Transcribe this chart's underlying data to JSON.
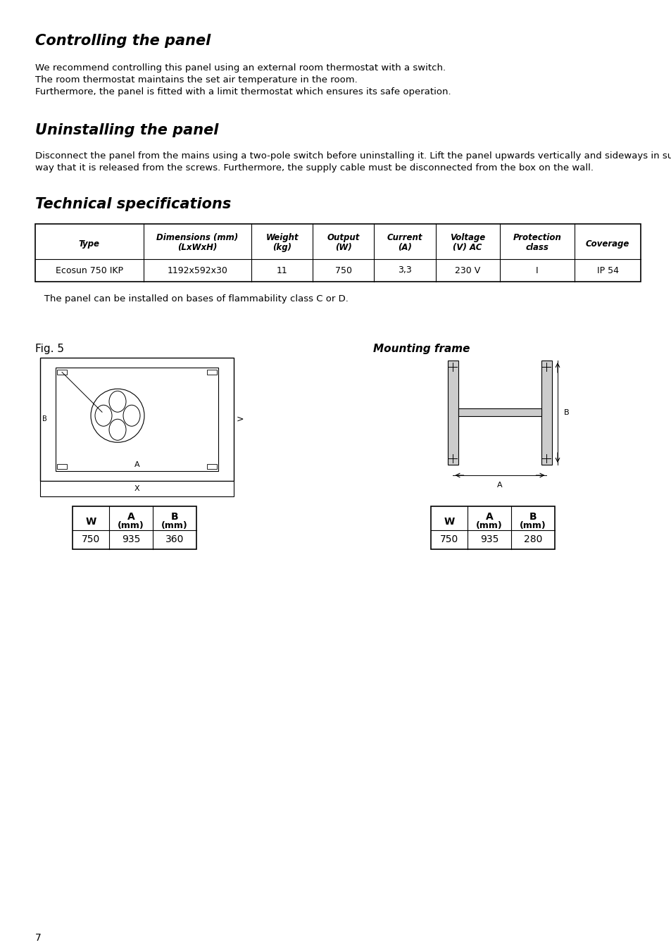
{
  "title1": "Controlling the panel",
  "text1_lines": [
    "We recommend controlling this panel using an external room thermostat with a switch.",
    "The room thermostat maintains the set air temperature in the room.",
    "Furthermore, the panel is fitted with a limit thermostat which ensures its safe operation."
  ],
  "title2": "Uninstalling the panel",
  "text2_lines": [
    "Disconnect the panel from the mains using a two-pole switch before uninstalling it. Lift the panel upwards vertically and sideways in such a",
    "way that it is released from the screws. Furthermore, the supply cable must be disconnected from the box on the wall."
  ],
  "title3": "Technical specifications",
  "table_headers": [
    "Type",
    "Dimensions (mm)\n(LxWxH)",
    "Weight\n(kg)",
    "Output\n(W)",
    "Current\n(A)",
    "Voltage\n(V) AC",
    "Protection\nclass",
    "Coverage"
  ],
  "table_data": [
    [
      "Ecosun 750 IKP",
      "1192x592x30",
      "11",
      "750",
      "3,3",
      "230 V",
      "I",
      "IP 54"
    ]
  ],
  "flammability_text": "   The panel can be installed on bases of flammability class C or D.",
  "fig5_label": "Fig. 5",
  "mounting_frame_label": "Mounting frame",
  "table1_headers": [
    "W",
    "A\n(mm)",
    "B\n(mm)"
  ],
  "table1_data": [
    [
      "750",
      "935",
      "360"
    ]
  ],
  "table2_headers": [
    "W",
    "A\n(mm)",
    "B\n(mm)"
  ],
  "table2_data": [
    [
      "750",
      "935",
      "280"
    ]
  ],
  "page_number": "7",
  "bg_color": "#ffffff",
  "text_color": "#000000"
}
